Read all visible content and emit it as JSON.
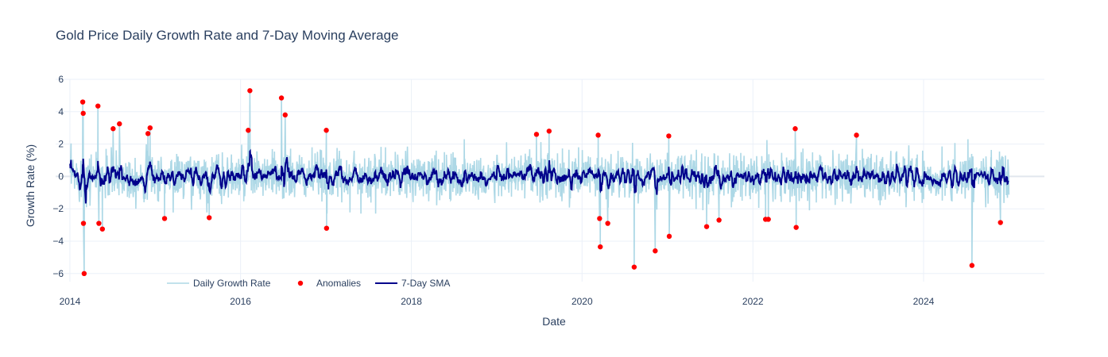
{
  "chart_data": {
    "type": "line",
    "title": "Gold Price Daily Growth Rate and 7-Day Moving Average",
    "xlabel": "Date",
    "ylabel": "Growth Rate (%)",
    "x_ticks": [
      "2014",
      "2016",
      "2018",
      "2020",
      "2022",
      "2024"
    ],
    "y_ticks": [
      "−6",
      "−4",
      "−2",
      "0",
      "2",
      "4",
      "6"
    ],
    "xlim": [
      "2013-11-01",
      "2025-06-01"
    ],
    "ylim": [
      -6.5,
      6.0
    ],
    "x_range": [
      "2014-01-02",
      "2024-12-31"
    ],
    "grid": true,
    "legend": {
      "placement": "bottom-left",
      "orientation": "horizontal"
    },
    "series": [
      {
        "name": "Daily Growth Rate",
        "kind": "line",
        "color": "#add8e6",
        "note": "daily values between approx -2.4 and 2.4 with spikes to the anomaly points"
      },
      {
        "name": "Anomalies",
        "kind": "markers",
        "color": "#ff0000",
        "points": [
          [
            "2014-02-25",
            4.6
          ],
          [
            "2014-02-27",
            3.9
          ],
          [
            "2014-02-28",
            -2.9
          ],
          [
            "2014-03-03",
            -6.0
          ],
          [
            "2014-05-01",
            4.35
          ],
          [
            "2014-05-05",
            -2.9
          ],
          [
            "2014-05-20",
            -3.25
          ],
          [
            "2014-07-05",
            2.95
          ],
          [
            "2014-08-01",
            3.25
          ],
          [
            "2014-12-01",
            2.65
          ],
          [
            "2014-12-10",
            3.0
          ],
          [
            "2015-02-10",
            -2.6
          ],
          [
            "2015-08-20",
            -2.55
          ],
          [
            "2016-02-03",
            2.85
          ],
          [
            "2016-02-10",
            5.3
          ],
          [
            "2016-06-24",
            4.85
          ],
          [
            "2016-07-10",
            3.8
          ],
          [
            "2017-01-02",
            2.85
          ],
          [
            "2017-01-03",
            -3.2
          ],
          [
            "2019-06-20",
            2.6
          ],
          [
            "2019-08-13",
            2.8
          ],
          [
            "2020-03-10",
            2.55
          ],
          [
            "2020-03-16",
            -2.6
          ],
          [
            "2020-03-19",
            -4.35
          ],
          [
            "2020-04-20",
            -2.9
          ],
          [
            "2020-08-11",
            -5.6
          ],
          [
            "2020-11-09",
            -4.6
          ],
          [
            "2021-01-06",
            2.5
          ],
          [
            "2021-01-08",
            -3.7
          ],
          [
            "2021-06-17",
            -3.1
          ],
          [
            "2021-08-09",
            -2.7
          ],
          [
            "2022-02-24",
            -2.65
          ],
          [
            "2022-03-08",
            -2.65
          ],
          [
            "2022-07-01",
            2.95
          ],
          [
            "2022-07-05",
            -3.15
          ],
          [
            "2023-03-20",
            2.55
          ],
          [
            "2024-07-26",
            -5.5
          ],
          [
            "2024-11-25",
            -2.85
          ]
        ]
      },
      {
        "name": "7-Day SMA",
        "kind": "line",
        "color": "#00008b",
        "note": "smoothed series mostly between approx -1.0 and 1.3"
      }
    ]
  }
}
